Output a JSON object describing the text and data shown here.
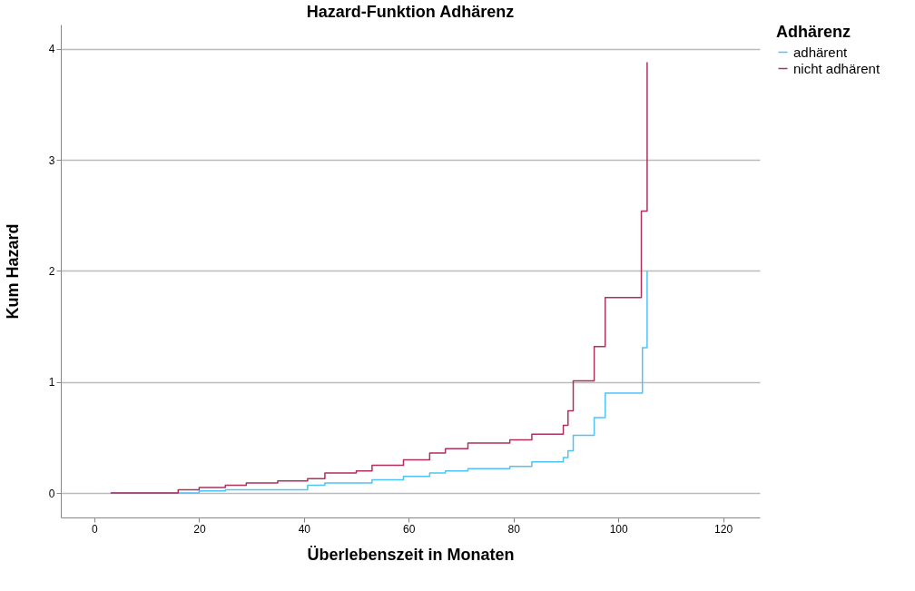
{
  "chart_data": {
    "type": "step",
    "title": "Hazard-Funktion Adhärenz",
    "xlabel": "Überlebenszeit in Monaten",
    "ylabel": "Kum Hazard",
    "legend_title": "Adhärenz",
    "xlim": [
      -6.4,
      127
    ],
    "xticks": [
      0,
      20,
      40,
      60,
      80,
      100,
      120
    ],
    "ylim": [
      -0.22,
      4.22
    ],
    "yticks": [
      0,
      1,
      2,
      3,
      4
    ],
    "grid": "y",
    "legend": "top right",
    "line_style": "solid",
    "marker": "none",
    "series": [
      {
        "name": "adhärent",
        "color": "#4fc3f7",
        "x": [
          3.1,
          20,
          25,
          40.7,
          44,
          53,
          59,
          64,
          67,
          71.3,
          79.3,
          83.5,
          89.5,
          90.4,
          91.4,
          95.4,
          97.5,
          104.6,
          105.5
        ],
        "values": [
          0,
          0.02,
          0.03,
          0.07,
          0.09,
          0.12,
          0.15,
          0.18,
          0.2,
          0.22,
          0.24,
          0.28,
          0.32,
          0.38,
          0.52,
          0.68,
          0.9,
          1.31,
          2.0
        ]
      },
      {
        "name": "nicht adhärent",
        "color": "#b0305c",
        "x": [
          3.1,
          16,
          20,
          25,
          29,
          35,
          40.7,
          44,
          50,
          53,
          59,
          64,
          67,
          71.3,
          79.3,
          83.5,
          89.5,
          90.4,
          91.4,
          95.4,
          97.5,
          104.4,
          105.5
        ],
        "values": [
          0,
          0.03,
          0.05,
          0.07,
          0.09,
          0.11,
          0.13,
          0.18,
          0.2,
          0.25,
          0.3,
          0.36,
          0.4,
          0.45,
          0.48,
          0.53,
          0.61,
          0.74,
          1.01,
          1.32,
          1.76,
          2.54,
          3.88
        ]
      }
    ]
  }
}
